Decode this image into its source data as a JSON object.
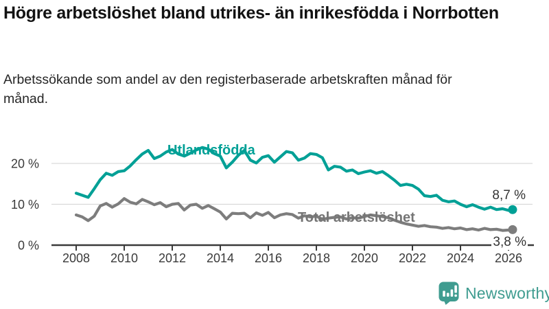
{
  "header": {
    "title": "Högre arbetslöshet bland utrikes- än inrikesfödda i Norrbotten",
    "subtitle": "Arbetssökande som andel av den registerbaserade arbetskraften månad för månad."
  },
  "footer": {
    "brand": "Newsworthy"
  },
  "colors": {
    "series1": "#00a096",
    "series2": "#7d7d7d",
    "series2_label": "#757575",
    "grid": "#d9d9d9",
    "axis": "#3a3a3a",
    "tick_text": "#3a3a3a",
    "value_label_text": "#333333",
    "brand_teal": "#3f9c90",
    "title_text": "#121212"
  },
  "chart_data": {
    "type": "line",
    "title": "Högre arbetslöshet bland utrikes- än inrikesfödda i Norrbotten",
    "subtitle": "Arbetssökande som andel av den registerbaserade arbetskraften månad för månad.",
    "xlabel": "",
    "ylabel": "",
    "unit": "%",
    "grid": "horizontal",
    "legend_position": "inline-on-lines",
    "xlim": [
      2008,
      2026.4
    ],
    "ylim": [
      0,
      25
    ],
    "x_ticks": [
      2008,
      2010,
      2012,
      2014,
      2016,
      2018,
      2020,
      2022,
      2024,
      2026
    ],
    "y_ticks": [
      {
        "value": 0,
        "label": "0 %"
      },
      {
        "value": 10,
        "label": "10 %"
      },
      {
        "value": 20,
        "label": "20 %"
      }
    ],
    "x": [
      2008,
      2008.25,
      2008.5,
      2008.75,
      2009,
      2009.25,
      2009.5,
      2009.75,
      2010,
      2010.25,
      2010.5,
      2010.75,
      2011,
      2011.25,
      2011.5,
      2011.75,
      2012,
      2012.25,
      2012.5,
      2012.75,
      2013,
      2013.25,
      2013.5,
      2013.75,
      2014,
      2014.25,
      2014.5,
      2014.75,
      2015,
      2015.25,
      2015.5,
      2015.75,
      2016,
      2016.25,
      2016.5,
      2016.75,
      2017,
      2017.25,
      2017.5,
      2017.75,
      2018,
      2018.25,
      2018.5,
      2018.75,
      2019,
      2019.25,
      2019.5,
      2019.75,
      2020,
      2020.25,
      2020.5,
      2020.75,
      2021,
      2021.25,
      2021.5,
      2021.75,
      2022,
      2022.25,
      2022.5,
      2022.75,
      2023,
      2023.25,
      2023.5,
      2023.75,
      2024,
      2024.25,
      2024.5,
      2024.75,
      2025,
      2025.25,
      2025.5,
      2025.75,
      2026,
      2026.17
    ],
    "series": [
      {
        "name": "Utlandsfödda",
        "end_label": "8,7 %",
        "end_value": 8.7,
        "color_key": "series1",
        "values": [
          12.7,
          12.2,
          11.7,
          13.8,
          16.0,
          17.6,
          17.1,
          18.0,
          18.2,
          19.4,
          20.9,
          22.3,
          23.2,
          21.2,
          21.8,
          22.8,
          23.4,
          22.3,
          21.8,
          22.5,
          23.3,
          23.9,
          23.5,
          22.4,
          21.8,
          18.9,
          20.3,
          22.0,
          23.2,
          20.8,
          20.1,
          21.5,
          21.9,
          20.3,
          21.6,
          22.9,
          22.6,
          20.8,
          21.3,
          22.4,
          22.2,
          21.4,
          18.4,
          19.3,
          19.1,
          18.1,
          18.4,
          17.5,
          17.9,
          18.2,
          17.6,
          18.0,
          17.0,
          15.9,
          14.6,
          14.9,
          14.6,
          13.7,
          12.1,
          11.9,
          12.2,
          11.0,
          10.6,
          10.8,
          10.0,
          9.4,
          9.9,
          9.3,
          8.8,
          9.3,
          8.7,
          8.9,
          8.5,
          8.7
        ]
      },
      {
        "name": "Total arbetslöshet",
        "end_label": "3,8 %",
        "end_value": 3.8,
        "color_key": "series2",
        "values": [
          7.4,
          6.9,
          6.0,
          7.1,
          9.6,
          10.2,
          9.3,
          10.1,
          11.4,
          10.5,
          10.1,
          11.2,
          10.6,
          9.9,
          10.4,
          9.4,
          10.0,
          10.2,
          8.6,
          9.8,
          10.0,
          9.0,
          9.7,
          8.9,
          8.1,
          6.4,
          7.8,
          7.7,
          7.8,
          6.7,
          7.9,
          7.3,
          8.0,
          6.7,
          7.4,
          7.7,
          7.5,
          6.6,
          7.2,
          6.9,
          7.1,
          6.3,
          6.6,
          6.8,
          6.9,
          6.4,
          6.7,
          6.6,
          7.0,
          7.4,
          7.2,
          7.0,
          6.7,
          6.1,
          5.6,
          5.2,
          4.9,
          4.6,
          4.8,
          4.5,
          4.4,
          4.1,
          4.3,
          4.0,
          4.2,
          3.8,
          4.0,
          3.7,
          4.1,
          3.8,
          3.9,
          3.6,
          3.7,
          3.8
        ]
      }
    ]
  }
}
